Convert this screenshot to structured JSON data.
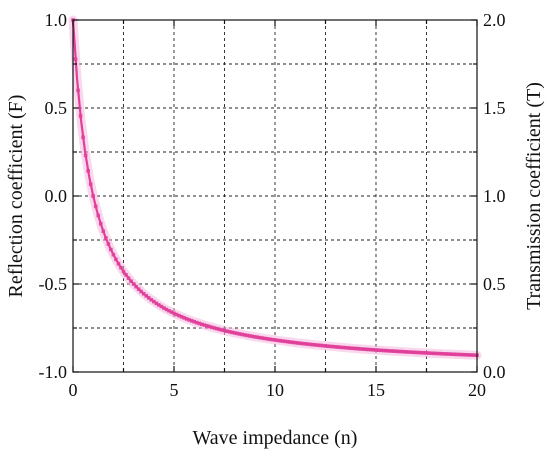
{
  "chart_data": {
    "type": "line",
    "xlabel": "Wave impedance (n)",
    "ylabel_left": "Reflection coefficient (F)",
    "ylabel_right": "Transmission coefficient (T)",
    "xlim": [
      0,
      20
    ],
    "ylim_left": [
      -1.0,
      1.0
    ],
    "ylim_right": [
      0.0,
      2.0
    ],
    "x_ticks": [
      "0",
      "5",
      "10",
      "15",
      "20"
    ],
    "y_ticks_left": [
      "1.0",
      "0.5",
      "0.0",
      "-0.5",
      "-1.0"
    ],
    "y_ticks_right": [
      "2.0",
      "1.5",
      "1.0",
      "0.5",
      "0.0"
    ],
    "grid": true,
    "series": [
      {
        "color": "#e0409a",
        "marker": "square",
        "x": [
          0.0,
          0.2,
          0.4,
          0.6,
          0.8,
          1.0,
          1.2,
          1.4,
          1.6,
          1.8,
          2.0,
          2.2,
          2.4,
          2.6,
          2.8,
          3.0,
          3.4,
          3.8,
          4.2,
          4.6,
          5.0,
          5.5,
          6.0,
          6.5,
          7.0,
          7.5,
          8.0,
          9.0,
          10.0,
          11.0,
          12.0,
          13.0,
          14.0,
          15.0,
          16.0,
          17.0,
          18.0,
          19.0,
          20.0
        ],
        "y": [
          1.0,
          0.667,
          0.429,
          0.25,
          0.111,
          0.0,
          -0.091,
          -0.167,
          -0.231,
          -0.286,
          -0.333,
          -0.375,
          -0.412,
          -0.444,
          -0.474,
          -0.5,
          -0.545,
          -0.583,
          -0.615,
          -0.643,
          -0.667,
          -0.692,
          -0.714,
          -0.733,
          -0.75,
          -0.765,
          -0.778,
          -0.8,
          -0.818,
          -0.833,
          -0.846,
          -0.857,
          -0.867,
          -0.875,
          -0.882,
          -0.889,
          -0.895,
          -0.9,
          -0.905
        ]
      }
    ]
  }
}
